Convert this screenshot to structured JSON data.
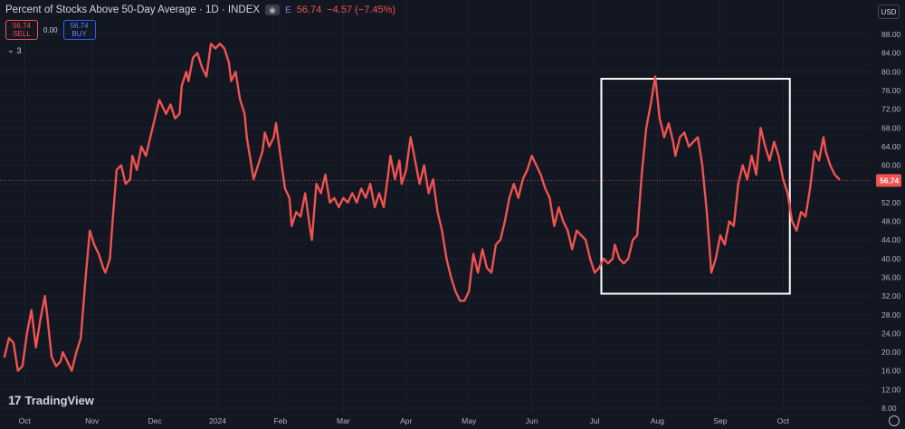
{
  "header": {
    "title": "Percent of Stocks Above 50-Day Average · 1D · INDEX",
    "eye_icon": "eye-icon",
    "exchange_badge": "E",
    "last_value": "56.74",
    "change": "−4.57 (−7.45%)"
  },
  "trade": {
    "sell_price": "56.74",
    "sell_label": "SELL",
    "spread": "0.00",
    "buy_price": "56.74",
    "buy_label": "BUY"
  },
  "indicators_toggle": {
    "icon": "chevron-down-icon",
    "count": "3"
  },
  "currency": "USD",
  "brand": {
    "logo_mark": "17",
    "name": "TradingView"
  },
  "settings_icon": "gear-icon",
  "colors": {
    "background": "#131722",
    "line": "#ef5350",
    "price_tag": "#ef5350",
    "highlight_box": "#ffffff"
  },
  "chart_data": {
    "type": "line",
    "title": "Percent of Stocks Above 50-Day Average",
    "xlabel": "",
    "ylabel": "",
    "ylim": [
      6,
      92
    ],
    "y_ticks": [
      "88.00",
      "84.00",
      "80.00",
      "76.00",
      "72.00",
      "68.00",
      "64.00",
      "60.00",
      "56.00",
      "52.00",
      "48.00",
      "44.00",
      "40.00",
      "36.00",
      "32.00",
      "28.00",
      "24.00",
      "20.00",
      "16.00",
      "12.00",
      "8.00"
    ],
    "x_ticks": [
      {
        "label": "Oct",
        "x": 9
      },
      {
        "label": "Nov",
        "x": 39
      },
      {
        "label": "Dec",
        "x": 67
      },
      {
        "label": "2024",
        "x": 95
      },
      {
        "label": "Feb",
        "x": 123
      },
      {
        "label": "Mar",
        "x": 151
      },
      {
        "label": "Apr",
        "x": 179
      },
      {
        "label": "May",
        "x": 207
      },
      {
        "label": "Jun",
        "x": 235
      },
      {
        "label": "Jul",
        "x": 263
      },
      {
        "label": "Aug",
        "x": 291
      },
      {
        "label": "Sep",
        "x": 319
      },
      {
        "label": "Oct",
        "x": 347
      }
    ],
    "current_value": 56.74,
    "highlight_range": {
      "x_start": 266,
      "x_end": 350,
      "y_low": 32.5,
      "y_high": 78.5
    },
    "series": [
      {
        "values": [
          [
            0,
            19
          ],
          [
            2,
            23
          ],
          [
            4,
            22
          ],
          [
            6,
            16
          ],
          [
            8,
            17
          ],
          [
            10,
            24
          ],
          [
            12,
            29
          ],
          [
            14,
            21
          ],
          [
            16,
            27
          ],
          [
            18,
            32
          ],
          [
            19,
            28
          ],
          [
            21,
            19
          ],
          [
            23,
            17
          ],
          [
            25,
            18
          ],
          [
            26,
            20
          ],
          [
            28,
            18
          ],
          [
            30,
            16
          ],
          [
            32,
            20
          ],
          [
            34,
            23
          ],
          [
            36,
            35
          ],
          [
            38,
            46
          ],
          [
            40,
            43
          ],
          [
            42,
            41
          ],
          [
            44,
            38
          ],
          [
            45,
            37
          ],
          [
            47,
            40
          ],
          [
            48,
            47
          ],
          [
            50,
            59
          ],
          [
            52,
            60
          ],
          [
            54,
            56
          ],
          [
            56,
            57
          ],
          [
            57,
            62
          ],
          [
            59,
            59
          ],
          [
            61,
            64
          ],
          [
            63,
            62
          ],
          [
            65,
            66
          ],
          [
            67,
            70
          ],
          [
            69,
            74
          ],
          [
            71,
            72
          ],
          [
            72,
            71
          ],
          [
            74,
            73
          ],
          [
            76,
            70
          ],
          [
            78,
            71
          ],
          [
            79,
            77
          ],
          [
            81,
            80
          ],
          [
            82,
            78
          ],
          [
            84,
            83
          ],
          [
            86,
            84
          ],
          [
            88,
            81
          ],
          [
            90,
            79
          ],
          [
            92,
            86
          ],
          [
            94,
            85
          ],
          [
            96,
            86
          ],
          [
            98,
            85
          ],
          [
            100,
            82
          ],
          [
            101,
            78
          ],
          [
            103,
            80
          ],
          [
            105,
            74
          ],
          [
            107,
            71
          ],
          [
            108,
            66
          ],
          [
            110,
            60
          ],
          [
            111,
            57
          ],
          [
            113,
            60
          ],
          [
            115,
            63
          ],
          [
            116,
            67
          ],
          [
            118,
            64
          ],
          [
            120,
            66
          ],
          [
            121,
            69
          ],
          [
            123,
            62
          ],
          [
            125,
            55
          ],
          [
            127,
            53
          ],
          [
            128,
            47
          ],
          [
            130,
            50
          ],
          [
            132,
            49
          ],
          [
            134,
            54
          ],
          [
            136,
            47
          ],
          [
            137,
            44
          ],
          [
            139,
            56
          ],
          [
            141,
            54
          ],
          [
            143,
            58
          ],
          [
            145,
            52
          ],
          [
            147,
            53
          ],
          [
            149,
            51
          ],
          [
            151,
            53
          ],
          [
            153,
            52
          ],
          [
            155,
            54
          ],
          [
            157,
            52
          ],
          [
            159,
            55
          ],
          [
            161,
            53
          ],
          [
            163,
            56
          ],
          [
            165,
            51
          ],
          [
            167,
            54
          ],
          [
            169,
            51
          ],
          [
            171,
            58
          ],
          [
            172,
            62
          ],
          [
            174,
            57
          ],
          [
            176,
            61
          ],
          [
            177,
            56
          ],
          [
            179,
            59
          ],
          [
            181,
            66
          ],
          [
            183,
            61
          ],
          [
            185,
            56
          ],
          [
            187,
            60
          ],
          [
            189,
            54
          ],
          [
            191,
            57
          ],
          [
            193,
            50
          ],
          [
            195,
            46
          ],
          [
            197,
            40
          ],
          [
            199,
            36
          ],
          [
            201,
            33
          ],
          [
            203,
            31
          ],
          [
            205,
            31
          ],
          [
            207,
            33
          ],
          [
            209,
            41
          ],
          [
            211,
            37
          ],
          [
            213,
            42
          ],
          [
            215,
            38
          ],
          [
            217,
            37
          ],
          [
            219,
            43
          ],
          [
            221,
            44
          ],
          [
            223,
            48
          ],
          [
            225,
            53
          ],
          [
            227,
            56
          ],
          [
            229,
            53
          ],
          [
            231,
            57
          ],
          [
            233,
            59
          ],
          [
            235,
            62
          ],
          [
            237,
            60
          ],
          [
            239,
            58
          ],
          [
            241,
            55
          ],
          [
            243,
            53
          ],
          [
            245,
            47
          ],
          [
            247,
            51
          ],
          [
            249,
            48
          ],
          [
            251,
            46
          ],
          [
            253,
            42
          ],
          [
            255,
            46
          ],
          [
            257,
            45
          ],
          [
            259,
            44
          ],
          [
            261,
            40
          ],
          [
            263,
            37
          ],
          [
            265,
            38
          ],
          [
            267,
            40
          ],
          [
            269,
            39
          ],
          [
            271,
            40
          ],
          [
            272,
            43
          ],
          [
            274,
            40
          ],
          [
            276,
            39
          ],
          [
            278,
            40
          ],
          [
            280,
            44
          ],
          [
            282,
            45
          ],
          [
            284,
            58
          ],
          [
            286,
            68
          ],
          [
            288,
            73
          ],
          [
            290,
            79
          ],
          [
            292,
            70
          ],
          [
            294,
            66
          ],
          [
            296,
            69
          ],
          [
            298,
            65
          ],
          [
            299,
            62
          ],
          [
            301,
            66
          ],
          [
            303,
            67
          ],
          [
            305,
            64
          ],
          [
            307,
            65
          ],
          [
            309,
            66
          ],
          [
            311,
            60
          ],
          [
            313,
            50
          ],
          [
            315,
            37
          ],
          [
            317,
            40
          ],
          [
            319,
            45
          ],
          [
            321,
            43
          ],
          [
            323,
            48
          ],
          [
            325,
            47
          ],
          [
            327,
            56
          ],
          [
            329,
            60
          ],
          [
            331,
            57
          ],
          [
            333,
            62
          ],
          [
            335,
            58
          ],
          [
            337,
            68
          ],
          [
            339,
            64
          ],
          [
            341,
            61
          ],
          [
            343,
            65
          ],
          [
            345,
            62
          ],
          [
            347,
            57
          ],
          [
            349,
            54
          ],
          [
            351,
            48
          ],
          [
            353,
            46
          ],
          [
            355,
            50
          ],
          [
            357,
            49
          ],
          [
            359,
            55
          ],
          [
            361,
            63
          ],
          [
            363,
            61
          ],
          [
            365,
            66
          ],
          [
            366,
            63
          ],
          [
            368,
            60
          ],
          [
            370,
            58
          ],
          [
            372,
            57
          ]
        ]
      }
    ]
  }
}
